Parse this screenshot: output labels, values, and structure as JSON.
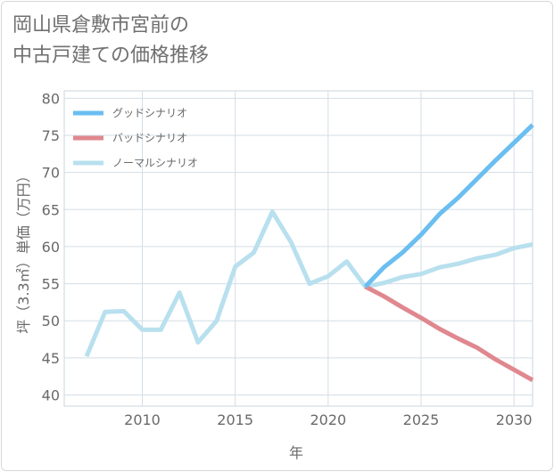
{
  "title": {
    "line1": "岡山県倉敷市宮前の",
    "line2": "中古戸建ての価格推移"
  },
  "chart_data": {
    "type": "line",
    "xlabel": "年",
    "ylabel": "坪（3.3㎡）単価（万円）",
    "xlim": [
      2005.8,
      2031
    ],
    "ylim": [
      38.5,
      81
    ],
    "x_ticks": [
      2010,
      2015,
      2020,
      2025,
      2030
    ],
    "y_ticks": [
      40,
      45,
      50,
      55,
      60,
      65,
      70,
      75,
      80
    ],
    "grid": true,
    "legend_position": "top-left",
    "series": [
      {
        "name": "グッドシナリオ",
        "color": "#6bbef0",
        "x": [
          2022,
          2023,
          2024,
          2025,
          2026,
          2027,
          2028,
          2029,
          2030,
          2031
        ],
        "y": [
          54.6,
          57.2,
          59.2,
          61.6,
          64.4,
          66.6,
          69.1,
          71.6,
          74.0,
          76.4
        ]
      },
      {
        "name": "バッドシナリオ",
        "color": "#e0888f",
        "x": [
          2022,
          2023,
          2024,
          2025,
          2026,
          2027,
          2028,
          2029,
          2030,
          2031
        ],
        "y": [
          54.6,
          53.3,
          51.8,
          50.4,
          48.9,
          47.6,
          46.4,
          44.8,
          43.4,
          42.0
        ]
      },
      {
        "name": "ノーマルシナリオ",
        "color": "#b8e0ee",
        "x": [
          2007,
          2008,
          2009,
          2010,
          2011,
          2012,
          2013,
          2014,
          2015,
          2016,
          2017,
          2018,
          2019,
          2020,
          2021,
          2022,
          2023,
          2024,
          2025,
          2026,
          2027,
          2028,
          2029,
          2030,
          2031
        ],
        "y": [
          45.2,
          51.2,
          51.3,
          48.8,
          48.8,
          53.8,
          47.1,
          50.0,
          57.3,
          59.2,
          64.7,
          60.6,
          55.0,
          56.0,
          58.0,
          54.6,
          55.1,
          55.9,
          56.3,
          57.2,
          57.7,
          58.4,
          58.9,
          59.8,
          60.3
        ]
      }
    ]
  }
}
